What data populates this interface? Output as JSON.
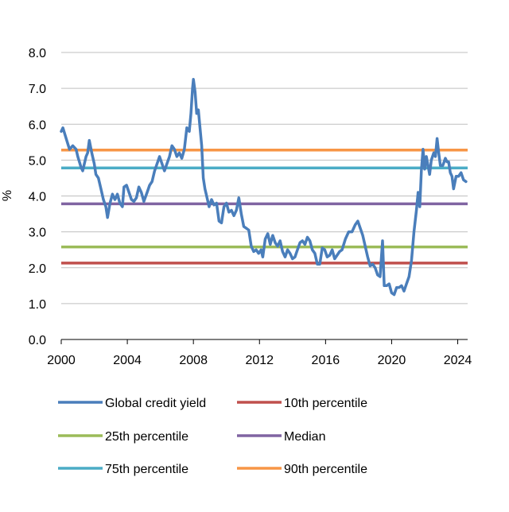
{
  "chart_data": {
    "type": "line",
    "ylabel": "%",
    "xlabel": "",
    "xlim": [
      2000,
      2024.6
    ],
    "ylim": [
      0,
      8
    ],
    "x_ticks": [
      2000,
      2004,
      2008,
      2012,
      2016,
      2020,
      2024
    ],
    "y_ticks": [
      0.0,
      1.0,
      2.0,
      3.0,
      4.0,
      5.0,
      6.0,
      7.0,
      8.0
    ],
    "y_tick_labels": [
      "0.0",
      "1.0",
      "2.0",
      "3.0",
      "4.0",
      "5.0",
      "6.0",
      "7.0",
      "8.0"
    ],
    "grid": "horizontal",
    "legend_position": "bottom",
    "series": [
      {
        "name": "Global credit yield",
        "color": "#4a7ebb",
        "points": [
          [
            2000.0,
            5.8
          ],
          [
            2000.1,
            5.9
          ],
          [
            2000.3,
            5.6
          ],
          [
            2000.5,
            5.3
          ],
          [
            2000.7,
            5.4
          ],
          [
            2000.9,
            5.3
          ],
          [
            2001.0,
            5.1
          ],
          [
            2001.2,
            4.8
          ],
          [
            2001.3,
            4.7
          ],
          [
            2001.5,
            5.1
          ],
          [
            2001.6,
            5.2
          ],
          [
            2001.7,
            5.55
          ],
          [
            2001.85,
            5.2
          ],
          [
            2002.0,
            4.9
          ],
          [
            2002.1,
            4.6
          ],
          [
            2002.25,
            4.5
          ],
          [
            2002.4,
            4.2
          ],
          [
            2002.55,
            3.9
          ],
          [
            2002.7,
            3.7
          ],
          [
            2002.8,
            3.4
          ],
          [
            2002.95,
            3.8
          ],
          [
            2003.1,
            4.05
          ],
          [
            2003.25,
            3.9
          ],
          [
            2003.4,
            4.05
          ],
          [
            2003.55,
            3.8
          ],
          [
            2003.7,
            3.7
          ],
          [
            2003.8,
            4.25
          ],
          [
            2003.95,
            4.3
          ],
          [
            2004.1,
            4.1
          ],
          [
            2004.25,
            3.9
          ],
          [
            2004.4,
            3.85
          ],
          [
            2004.55,
            3.95
          ],
          [
            2004.7,
            4.25
          ],
          [
            2004.85,
            4.1
          ],
          [
            2005.0,
            3.85
          ],
          [
            2005.2,
            4.1
          ],
          [
            2005.35,
            4.3
          ],
          [
            2005.5,
            4.4
          ],
          [
            2005.65,
            4.7
          ],
          [
            2005.8,
            4.9
          ],
          [
            2005.95,
            5.1
          ],
          [
            2006.1,
            4.9
          ],
          [
            2006.25,
            4.7
          ],
          [
            2006.4,
            4.9
          ],
          [
            2006.55,
            5.1
          ],
          [
            2006.7,
            5.4
          ],
          [
            2006.85,
            5.3
          ],
          [
            2007.0,
            5.1
          ],
          [
            2007.15,
            5.2
          ],
          [
            2007.3,
            5.05
          ],
          [
            2007.45,
            5.3
          ],
          [
            2007.6,
            5.9
          ],
          [
            2007.75,
            5.8
          ],
          [
            2007.85,
            6.3
          ],
          [
            2007.95,
            7.0
          ],
          [
            2008.0,
            7.25
          ],
          [
            2008.1,
            6.9
          ],
          [
            2008.2,
            6.3
          ],
          [
            2008.3,
            6.4
          ],
          [
            2008.4,
            5.9
          ],
          [
            2008.5,
            5.4
          ],
          [
            2008.6,
            4.5
          ],
          [
            2008.7,
            4.2
          ],
          [
            2008.8,
            4.0
          ],
          [
            2008.95,
            3.7
          ],
          [
            2009.1,
            3.9
          ],
          [
            2009.25,
            3.75
          ],
          [
            2009.4,
            3.8
          ],
          [
            2009.55,
            3.3
          ],
          [
            2009.7,
            3.25
          ],
          [
            2009.85,
            3.7
          ],
          [
            2010.0,
            3.8
          ],
          [
            2010.15,
            3.55
          ],
          [
            2010.3,
            3.6
          ],
          [
            2010.45,
            3.45
          ],
          [
            2010.6,
            3.6
          ],
          [
            2010.75,
            3.95
          ],
          [
            2010.9,
            3.5
          ],
          [
            2011.05,
            3.15
          ],
          [
            2011.2,
            3.1
          ],
          [
            2011.35,
            3.05
          ],
          [
            2011.5,
            2.6
          ],
          [
            2011.65,
            2.45
          ],
          [
            2011.8,
            2.5
          ],
          [
            2011.95,
            2.4
          ],
          [
            2012.1,
            2.5
          ],
          [
            2012.2,
            2.3
          ],
          [
            2012.35,
            2.8
          ],
          [
            2012.5,
            2.95
          ],
          [
            2012.65,
            2.65
          ],
          [
            2012.8,
            2.9
          ],
          [
            2012.95,
            2.7
          ],
          [
            2013.1,
            2.6
          ],
          [
            2013.25,
            2.75
          ],
          [
            2013.4,
            2.45
          ],
          [
            2013.55,
            2.3
          ],
          [
            2013.7,
            2.5
          ],
          [
            2013.85,
            2.4
          ],
          [
            2014.0,
            2.25
          ],
          [
            2014.15,
            2.3
          ],
          [
            2014.3,
            2.5
          ],
          [
            2014.45,
            2.7
          ],
          [
            2014.6,
            2.75
          ],
          [
            2014.75,
            2.65
          ],
          [
            2014.9,
            2.85
          ],
          [
            2015.05,
            2.75
          ],
          [
            2015.2,
            2.5
          ],
          [
            2015.35,
            2.4
          ],
          [
            2015.5,
            2.1
          ],
          [
            2015.65,
            2.1
          ],
          [
            2015.8,
            2.55
          ],
          [
            2015.95,
            2.5
          ],
          [
            2016.1,
            2.3
          ],
          [
            2016.25,
            2.35
          ],
          [
            2016.4,
            2.5
          ],
          [
            2016.55,
            2.25
          ],
          [
            2016.7,
            2.35
          ],
          [
            2016.85,
            2.45
          ],
          [
            2017.0,
            2.5
          ],
          [
            2017.2,
            2.8
          ],
          [
            2017.4,
            3.0
          ],
          [
            2017.6,
            3.0
          ],
          [
            2017.8,
            3.2
          ],
          [
            2017.95,
            3.3
          ],
          [
            2018.1,
            3.1
          ],
          [
            2018.25,
            2.9
          ],
          [
            2018.4,
            2.6
          ],
          [
            2018.55,
            2.3
          ],
          [
            2018.7,
            2.05
          ],
          [
            2018.85,
            2.1
          ],
          [
            2019.0,
            2.0
          ],
          [
            2019.15,
            1.8
          ],
          [
            2019.3,
            1.75
          ],
          [
            2019.45,
            2.75
          ],
          [
            2019.55,
            1.5
          ],
          [
            2019.7,
            1.5
          ],
          [
            2019.85,
            1.55
          ],
          [
            2020.0,
            1.3
          ],
          [
            2020.15,
            1.25
          ],
          [
            2020.3,
            1.45
          ],
          [
            2020.45,
            1.45
          ],
          [
            2020.6,
            1.5
          ],
          [
            2020.75,
            1.35
          ],
          [
            2020.9,
            1.55
          ],
          [
            2021.05,
            1.75
          ],
          [
            2021.2,
            2.2
          ],
          [
            2021.35,
            3.0
          ],
          [
            2021.5,
            3.6
          ],
          [
            2021.6,
            4.1
          ],
          [
            2021.7,
            3.7
          ],
          [
            2021.8,
            4.7
          ],
          [
            2021.9,
            5.3
          ],
          [
            2022.0,
            4.75
          ],
          [
            2022.1,
            5.1
          ],
          [
            2022.2,
            4.85
          ],
          [
            2022.3,
            4.6
          ],
          [
            2022.4,
            5.0
          ],
          [
            2022.55,
            5.2
          ],
          [
            2022.65,
            5.1
          ],
          [
            2022.75,
            5.6
          ],
          [
            2022.85,
            5.2
          ],
          [
            2022.95,
            4.85
          ],
          [
            2023.1,
            4.85
          ],
          [
            2023.25,
            5.05
          ],
          [
            2023.35,
            4.95
          ],
          [
            2023.45,
            4.95
          ],
          [
            2023.55,
            4.65
          ],
          [
            2023.65,
            4.55
          ],
          [
            2023.75,
            4.2
          ],
          [
            2023.9,
            4.55
          ],
          [
            2024.05,
            4.55
          ],
          [
            2024.2,
            4.65
          ],
          [
            2024.35,
            4.45
          ],
          [
            2024.5,
            4.4
          ]
        ]
      },
      {
        "name": "10th percentile",
        "color": "#c0504d",
        "value": 2.13
      },
      {
        "name": "25th percentile",
        "color": "#9bbb59",
        "value": 2.58
      },
      {
        "name": "Median",
        "color": "#8064a2",
        "value": 3.78
      },
      {
        "name": "75th percentile",
        "color": "#4bacc6",
        "value": 4.78
      },
      {
        "name": "90th percentile",
        "color": "#f79646",
        "value": 5.28
      }
    ],
    "legend": [
      {
        "name": "Global credit yield",
        "color": "#4a7ebb"
      },
      {
        "name": "10th percentile",
        "color": "#c0504d"
      },
      {
        "name": "25th percentile",
        "color": "#9bbb59"
      },
      {
        "name": "Median",
        "color": "#8064a2"
      },
      {
        "name": "75th percentile",
        "color": "#4bacc6"
      },
      {
        "name": "90th percentile",
        "color": "#f79646"
      }
    ]
  }
}
